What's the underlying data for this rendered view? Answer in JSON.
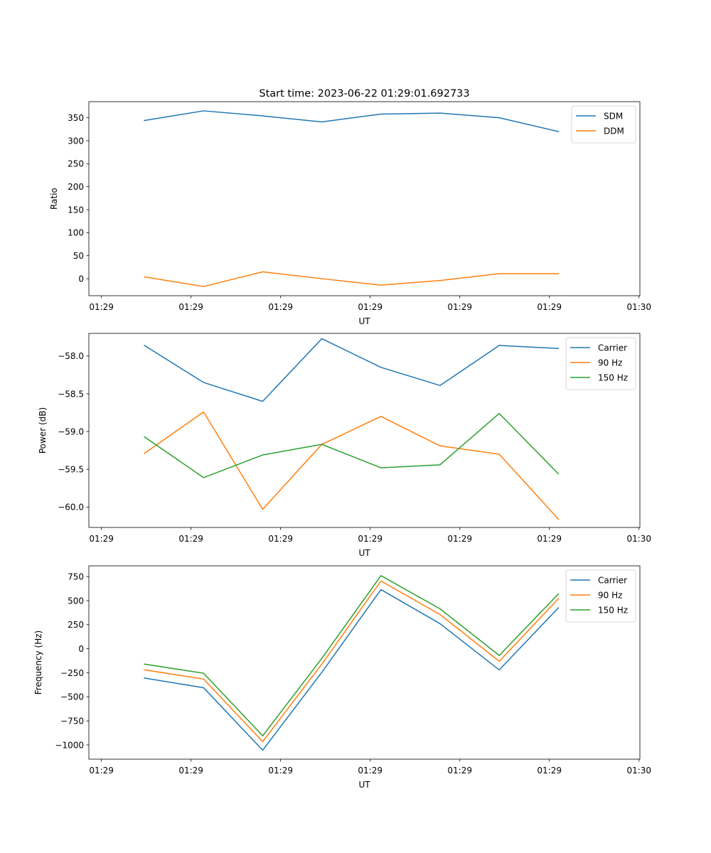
{
  "figure": {
    "title": "Start time: 2023-06-22 01:29:01.692733"
  },
  "colors": {
    "blue": "#1f77b4",
    "orange": "#ff7f0e",
    "green": "#2ca02c"
  },
  "chart_data": [
    {
      "type": "line",
      "title": "Start time: 2023-06-22 01:29:01.692733",
      "xlabel": "UT",
      "ylabel": "Ratio",
      "x_tick_labels": [
        "01:29",
        "01:29",
        "01:29",
        "01:29",
        "01:29",
        "01:29",
        "01:30"
      ],
      "xlim": [
        -0.7,
        30.05
      ],
      "x": [
        2.4,
        5.7,
        9.0,
        12.3,
        15.6,
        18.9,
        22.2,
        25.5
      ],
      "ylim": [
        -37,
        385
      ],
      "yticks": [
        0,
        50,
        100,
        150,
        200,
        250,
        300,
        350
      ],
      "legend": "top-right",
      "series": [
        {
          "name": "SDM",
          "color": "#1f77b4",
          "values": [
            344,
            365,
            354,
            341,
            358,
            360,
            350,
            320
          ]
        },
        {
          "name": "DDM",
          "color": "#ff7f0e",
          "values": [
            4,
            -17,
            15,
            0,
            -14,
            -4,
            11,
            11
          ]
        }
      ]
    },
    {
      "type": "line",
      "xlabel": "UT",
      "ylabel": "Power (dB)",
      "x_tick_labels": [
        "01:29",
        "01:29",
        "01:29",
        "01:29",
        "01:29",
        "01:29",
        "01:30"
      ],
      "xlim": [
        -0.7,
        30.05
      ],
      "x": [
        2.4,
        5.7,
        9.0,
        12.3,
        15.6,
        18.9,
        22.2,
        25.5
      ],
      "ylim": [
        -60.27,
        -57.7
      ],
      "yticks": [
        -60.0,
        -59.5,
        -59.0,
        -58.5,
        -58.0
      ],
      "ytick_labels": [
        "−60.0",
        "−59.5",
        "−59.0",
        "−58.5",
        "−58.0"
      ],
      "legend": "top-right",
      "series": [
        {
          "name": "Carrier",
          "color": "#1f77b4",
          "values": [
            -57.86,
            -58.35,
            -58.6,
            -57.77,
            -58.15,
            -58.39,
            -57.86,
            -57.9
          ]
        },
        {
          "name": "90 Hz",
          "color": "#ff7f0e",
          "values": [
            -59.29,
            -58.74,
            -60.03,
            -59.17,
            -58.8,
            -59.19,
            -59.3,
            -60.16
          ]
        },
        {
          "name": "150 Hz",
          "color": "#2ca02c",
          "values": [
            -59.07,
            -59.61,
            -59.31,
            -59.17,
            -59.48,
            -59.44,
            -58.76,
            -59.56
          ]
        }
      ]
    },
    {
      "type": "line",
      "xlabel": "UT",
      "ylabel": "Frequency (Hz)",
      "x_tick_labels": [
        "01:29",
        "01:29",
        "01:29",
        "01:29",
        "01:29",
        "01:29",
        "01:30"
      ],
      "xlim": [
        -0.7,
        30.05
      ],
      "x": [
        2.4,
        5.7,
        9.0,
        12.3,
        15.6,
        18.9,
        22.2,
        25.5
      ],
      "ylim": [
        -1148,
        862
      ],
      "yticks": [
        -1000,
        -750,
        -500,
        -250,
        0,
        250,
        500,
        750
      ],
      "ytick_labels": [
        "−1000",
        "−750",
        "−500",
        "−250",
        "0",
        "250",
        "500",
        "750"
      ],
      "legend": "top-right",
      "series": [
        {
          "name": "Carrier",
          "color": "#1f77b4",
          "values": [
            -305,
            -405,
            -1055,
            -245,
            615,
            260,
            -220,
            425
          ]
        },
        {
          "name": "90 Hz",
          "color": "#ff7f0e",
          "values": [
            -220,
            -315,
            -965,
            -160,
            705,
            355,
            -130,
            520
          ]
        },
        {
          "name": "150 Hz",
          "color": "#2ca02c",
          "values": [
            -160,
            -255,
            -905,
            -100,
            760,
            415,
            -70,
            570
          ]
        }
      ]
    }
  ]
}
